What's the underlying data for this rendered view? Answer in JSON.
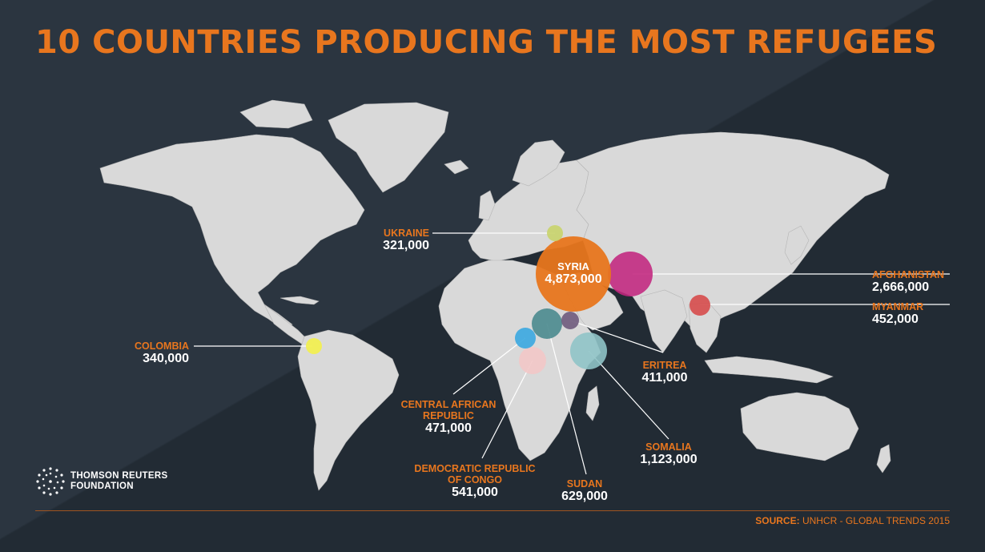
{
  "title": "10 COUNTRIES PRODUCING THE MOST REFUGEES",
  "countries": [
    {
      "id": "ukraine",
      "name": "UKRAINE",
      "value": "321,000",
      "color": "#c8d36a"
    },
    {
      "id": "syria",
      "name": "SYRIA",
      "value": "4,873,000",
      "color": "#e8761e"
    },
    {
      "id": "afghanistan",
      "name": "AFGHANISTAN",
      "value": "2,666,000",
      "color": "#c2267e"
    },
    {
      "id": "myanmar",
      "name": "MYANMAR",
      "value": "452,000",
      "color": "#d64b4b"
    },
    {
      "id": "colombia",
      "name": "COLOMBIA",
      "value": "340,000",
      "color": "#f2ef52"
    },
    {
      "id": "eritrea",
      "name": "ERITREA",
      "value": "411,000",
      "color": "#6e5a7c"
    },
    {
      "id": "somalia",
      "name": "SOMALIA",
      "value": "1,123,000",
      "color": "#8fc3c6"
    },
    {
      "id": "car",
      "name": "CENTRAL AFRICAN REPUBLIC",
      "name_lines": [
        "CENTRAL AFRICAN",
        "REPUBLIC"
      ],
      "value": "471,000",
      "color": "#3aa7e0"
    },
    {
      "id": "drc",
      "name": "DEMOCRATIC REPUBLIC OF CONGO",
      "name_lines": [
        "DEMOCRATIC REPUBLIC",
        "OF CONGO"
      ],
      "value": "541,000",
      "color": "#f2c6c6"
    },
    {
      "id": "sudan",
      "name": "SUDAN",
      "value": "629,000",
      "color": "#4a8a8e"
    }
  ],
  "logo": {
    "line1": "THOMSON REUTERS",
    "line2": "FOUNDATION"
  },
  "source": {
    "label": "SOURCE:",
    "text": "UNHCR - GLOBAL TRENDS 2015"
  },
  "colors": {
    "background": "#26303a",
    "land": "#d9d9d9",
    "accent": "#e8761e"
  }
}
